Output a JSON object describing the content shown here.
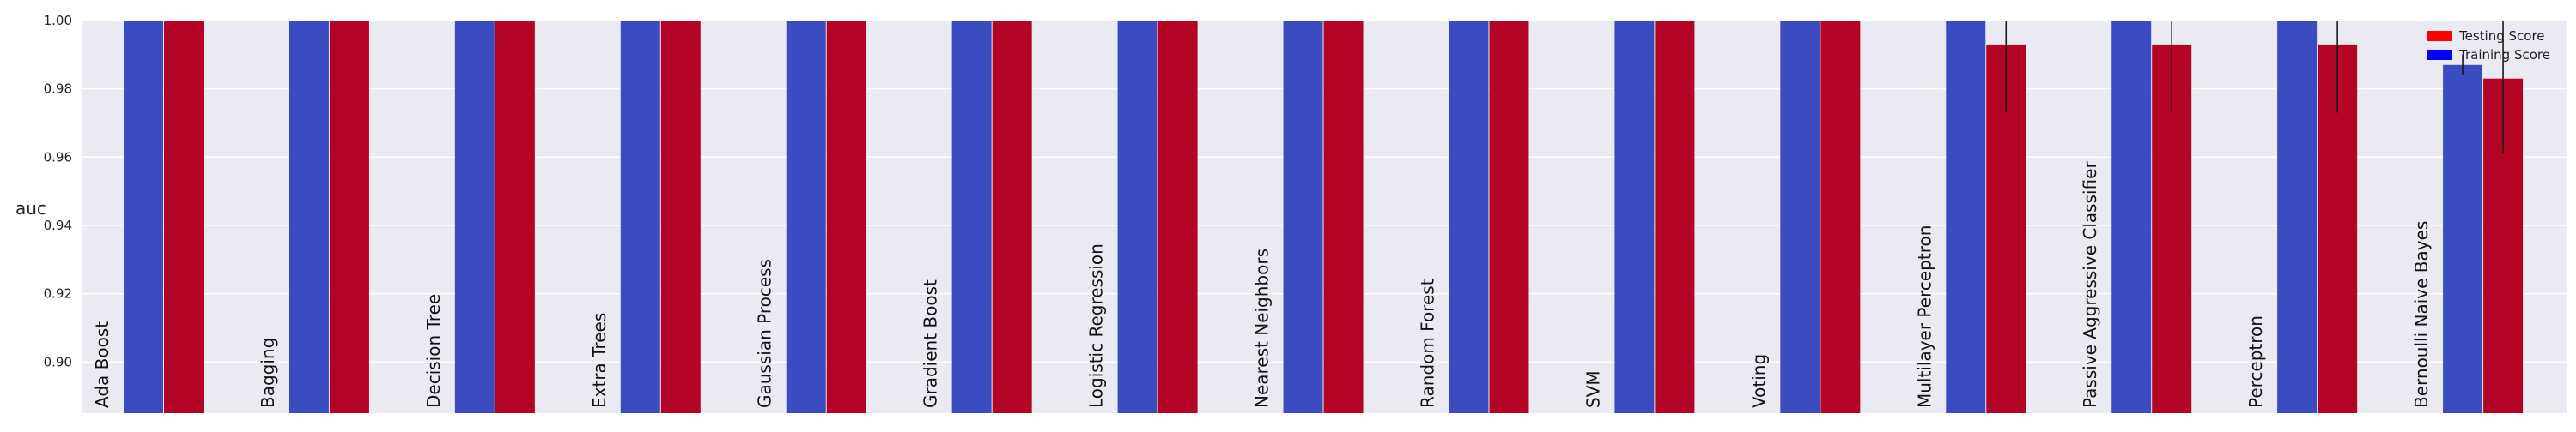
{
  "chart_data": {
    "type": "bar",
    "ylabel": "auc",
    "ylim": [
      0.885,
      1.0
    ],
    "yticks": [
      0.9,
      0.92,
      0.94,
      0.96,
      0.98,
      1.0
    ],
    "ytick_labels": [
      "0.90",
      "0.92",
      "0.94",
      "0.96",
      "0.98",
      "1.00"
    ],
    "grid": true,
    "legend_position": "top-right",
    "categories": [
      "Ada Boost",
      "Bagging",
      "Decision Tree",
      "Extra Trees",
      "Gaussian Process",
      "Gradient Boost",
      "Logistic Regression",
      "Nearest Neighbors",
      "Random Forest",
      "SVM",
      "Voting",
      "Multilayer Perceptron",
      "Passive Aggressive Classifier",
      "Perceptron",
      "Bernoulli Naive Bayes"
    ],
    "series": [
      {
        "name": "Training Score",
        "color": "#3b4cc0",
        "legend_color": "#0000ff",
        "values": [
          1.0,
          1.0,
          1.0,
          1.0,
          1.0,
          1.0,
          1.0,
          1.0,
          1.0,
          1.0,
          1.0,
          1.0,
          1.0,
          1.0,
          0.987
        ],
        "errors": [
          0,
          0,
          0,
          0,
          0,
          0,
          0,
          0,
          0,
          0,
          0,
          0,
          0,
          0,
          0.003
        ]
      },
      {
        "name": "Testing Score",
        "color": "#b40426",
        "legend_color": "#ff0000",
        "values": [
          1.0,
          1.0,
          1.0,
          1.0,
          1.0,
          1.0,
          1.0,
          1.0,
          1.0,
          1.0,
          1.0,
          0.993,
          0.993,
          0.993,
          0.983
        ],
        "errors": [
          0,
          0,
          0,
          0,
          0,
          0,
          0,
          0,
          0,
          0,
          0,
          0.02,
          0.02,
          0.02,
          0.022
        ]
      }
    ]
  }
}
